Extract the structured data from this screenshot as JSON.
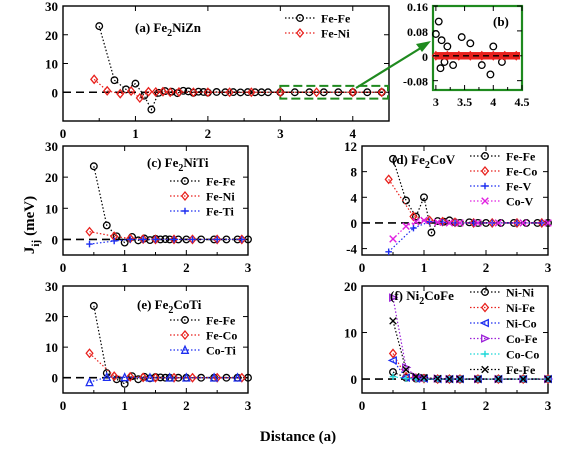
{
  "figure": {
    "ylabel_main": "J",
    "ylabel_sub": "ij",
    "ylabel_unit": "(meV)",
    "xlabel": "Distance (a)"
  },
  "colors": {
    "Fe-Fe": "#000000",
    "Fe-Ni": "#e8211d",
    "Fe-Co": "#e8211d",
    "Fe-Ti": "#1d2ef0",
    "Fe-V": "#1d2ef0",
    "Co-Ti": "#1d2ef0",
    "Co-V": "#e020e0",
    "Ni-Ni": "#000000",
    "Ni-Fe": "#e8211d",
    "Ni-Co": "#1d2ef0",
    "Co-Fe": "#9b1fd8",
    "Co-Co": "#1fd8d8",
    "inset_box": "#1f8a1f"
  },
  "chart_data": [
    {
      "id": "a",
      "type": "scatter",
      "label_prefix": "(a) Fe",
      "label_sub1": "2",
      "label_rest": "NiZn",
      "xlim": [
        0,
        4.5
      ],
      "ylim": [
        -10,
        30
      ],
      "xticks": [
        "0",
        "1",
        "2",
        "3",
        "4"
      ],
      "xtick_values": [
        0,
        1,
        2,
        3,
        4
      ],
      "yticks": [
        "0",
        "10",
        "20",
        "30"
      ],
      "ytick_values": [
        0,
        10,
        20,
        30
      ],
      "zoom_range": [
        3,
        4.5
      ],
      "series": [
        {
          "name": "Fe-Fe",
          "marker": "circle",
          "x": [
            0.5,
            0.71,
            0.87,
            1.0,
            1.12,
            1.22,
            1.32,
            1.41,
            1.5,
            1.58,
            1.66,
            1.73,
            1.8,
            1.87,
            1.94,
            2.0,
            2.12,
            2.24,
            2.35,
            2.45,
            2.55,
            2.65,
            2.74,
            2.83,
            3.0,
            3.2,
            3.4,
            3.6,
            3.8,
            4.0,
            4.2,
            4.4
          ],
          "y": [
            23,
            4.2,
            1.0,
            3.0,
            -1.2,
            -6.0,
            -0.2,
            0.4,
            0.2,
            -0.3,
            0.5,
            0.3,
            -0.2,
            0.2,
            0.1,
            -0.1,
            0.1,
            0,
            0.05,
            -0.05,
            0.05,
            0,
            0,
            0,
            0,
            0,
            0,
            0,
            0,
            0,
            0,
            0
          ]
        },
        {
          "name": "Fe-Ni",
          "marker": "diamond",
          "x": [
            0.43,
            0.61,
            0.79,
            0.94,
            1.06,
            1.18,
            1.28,
            1.38,
            1.48,
            1.6,
            1.8,
            2.0,
            2.3,
            2.6,
            3.0,
            3.5,
            4.0,
            4.4
          ],
          "y": [
            4.5,
            0.5,
            -0.5,
            0.4,
            -2.0,
            0.2,
            0.1,
            0.2,
            0,
            0.1,
            0,
            0,
            0,
            0,
            0,
            0,
            0,
            0
          ]
        }
      ]
    },
    {
      "id": "b",
      "type": "scatter",
      "label": "(b)",
      "xlim": [
        2.95,
        4.5
      ],
      "ylim": [
        -0.11,
        0.16
      ],
      "xticks": [
        "3",
        "3.5",
        "4",
        "4.5"
      ],
      "xtick_values": [
        3,
        3.5,
        4,
        4.5
      ],
      "yticks": [
        "-0.08",
        "0",
        "0.08",
        "0.16"
      ],
      "ytick_values": [
        -0.08,
        0,
        0.08,
        0.16
      ],
      "series": [
        {
          "name": "Fe-Fe",
          "marker": "circle",
          "x": [
            3.0,
            3.05,
            3.08,
            3.1,
            3.15,
            3.2,
            3.3,
            3.45,
            3.6,
            3.8,
            3.95,
            4.0,
            4.15
          ],
          "y": [
            0.07,
            0.11,
            -0.04,
            0.05,
            -0.02,
            0.03,
            -0.03,
            0.06,
            0.04,
            -0.03,
            -0.06,
            0.03,
            -0.02
          ]
        },
        {
          "name": "Fe-Ni",
          "marker": "diamond",
          "x": [
            3.0,
            3.2,
            3.4,
            3.6,
            3.8,
            4.0,
            4.2,
            4.4
          ],
          "y": [
            0,
            0,
            0,
            0,
            0,
            0,
            0,
            0
          ]
        }
      ]
    },
    {
      "id": "c",
      "type": "scatter",
      "label_prefix": "(c) Fe",
      "label_sub1": "2",
      "label_rest": "NiTi",
      "xlim": [
        0,
        3
      ],
      "ylim": [
        -5,
        30
      ],
      "xticks": [
        "0",
        "1",
        "2",
        "3"
      ],
      "xtick_values": [
        0,
        1,
        2,
        3
      ],
      "yticks": [
        "0",
        "10",
        "20",
        "30"
      ],
      "ytick_values": [
        0,
        10,
        20,
        30
      ],
      "series": [
        {
          "name": "Fe-Fe",
          "marker": "circle",
          "x": [
            0.5,
            0.71,
            0.87,
            1.0,
            1.12,
            1.22,
            1.32,
            1.41,
            1.5,
            1.58,
            1.66,
            1.73,
            1.87,
            2.0,
            2.24,
            2.45,
            2.65,
            2.83,
            3.0
          ],
          "y": [
            23.5,
            4.5,
            1.0,
            -1.0,
            0.8,
            -0.3,
            0.3,
            -0.2,
            0.2,
            0,
            0.1,
            0,
            0,
            0,
            0,
            0,
            0,
            0,
            0
          ]
        },
        {
          "name": "Fe-Ni",
          "marker": "diamond",
          "x": [
            0.43,
            0.83,
            1.09,
            1.3,
            1.5,
            1.8,
            2.1,
            2.5,
            2.9
          ],
          "y": [
            2.5,
            1.0,
            0.3,
            0.1,
            0,
            0,
            0,
            0,
            0
          ]
        },
        {
          "name": "Fe-Ti",
          "marker": "plus",
          "x": [
            0.43,
            0.83,
            1.09,
            1.3,
            1.5,
            1.8,
            2.1,
            2.5,
            2.9
          ],
          "y": [
            -1.5,
            -0.5,
            0,
            0,
            0,
            0,
            0,
            0,
            0
          ]
        }
      ]
    },
    {
      "id": "d",
      "type": "scatter",
      "label_prefix": "(d) Fe",
      "label_sub1": "2",
      "label_rest": "CoV",
      "xlim": [
        0,
        3
      ],
      "ylim": [
        -5,
        12
      ],
      "xticks": [
        "0",
        "1",
        "2",
        "3"
      ],
      "xtick_values": [
        0,
        1,
        2,
        3
      ],
      "yticks": [
        "-4",
        "0",
        "4",
        "8",
        "12"
      ],
      "ytick_values": [
        -4,
        0,
        4,
        8,
        12
      ],
      "series": [
        {
          "name": "Fe-Fe",
          "marker": "circle",
          "x": [
            0.5,
            0.71,
            0.87,
            1.0,
            1.12,
            1.22,
            1.32,
            1.41,
            1.5,
            1.58,
            1.73,
            1.87,
            2.0,
            2.24,
            2.45,
            2.65,
            2.83,
            3.0
          ],
          "y": [
            10,
            3.5,
            1.0,
            4.0,
            -1.5,
            0.3,
            0.2,
            0.4,
            0.1,
            0,
            0.1,
            0,
            0,
            0,
            0,
            0,
            0,
            0
          ]
        },
        {
          "name": "Fe-Co",
          "marker": "diamond",
          "x": [
            0.43,
            0.83,
            1.09,
            1.3,
            1.5,
            1.8,
            2.1,
            2.5,
            2.9
          ],
          "y": [
            6.8,
            1.0,
            0.4,
            0.2,
            0.1,
            0,
            0,
            0,
            0
          ]
        },
        {
          "name": "Fe-V",
          "marker": "plus",
          "x": [
            0.43,
            0.83,
            1.09,
            1.3,
            1.5,
            1.8,
            2.1,
            2.5,
            2.9
          ],
          "y": [
            -4.5,
            -0.8,
            0.2,
            0.1,
            0,
            0,
            0,
            0,
            0
          ]
        },
        {
          "name": "Co-V",
          "marker": "cross",
          "x": [
            0.5,
            0.71,
            0.87,
            1.0,
            1.22,
            1.41,
            1.58,
            1.87,
            2.2,
            2.6,
            3.0
          ],
          "y": [
            -2.5,
            -0.5,
            0.2,
            0.4,
            0.1,
            0,
            0,
            0,
            0,
            0,
            0
          ]
        }
      ]
    },
    {
      "id": "e",
      "type": "scatter",
      "label_prefix": "(e) Fe",
      "label_sub1": "2",
      "label_rest": "CoTi",
      "xlim": [
        0,
        3
      ],
      "ylim": [
        -5,
        30
      ],
      "xticks": [
        "0",
        "1",
        "2",
        "3"
      ],
      "xtick_values": [
        0,
        1,
        2,
        3
      ],
      "yticks": [
        "0",
        "10",
        "20",
        "30"
      ],
      "ytick_values": [
        0,
        10,
        20,
        30
      ],
      "series": [
        {
          "name": "Fe-Fe",
          "marker": "circle",
          "x": [
            0.5,
            0.71,
            0.87,
            1.0,
            1.12,
            1.22,
            1.32,
            1.41,
            1.5,
            1.58,
            1.66,
            1.73,
            1.87,
            2.0,
            2.24,
            2.45,
            2.65,
            2.83,
            3.0
          ],
          "y": [
            23.5,
            1.5,
            -0.5,
            -2.0,
            0.5,
            -0.5,
            0.3,
            -0.2,
            0.2,
            0.1,
            0,
            0,
            0,
            0,
            0,
            0,
            0,
            0,
            0
          ]
        },
        {
          "name": "Fe-Co",
          "marker": "diamond",
          "x": [
            0.43,
            0.83,
            1.09,
            1.3,
            1.5,
            1.8,
            2.1,
            2.5,
            2.9
          ],
          "y": [
            8.0,
            0.5,
            0.3,
            0.1,
            0,
            0,
            0,
            0,
            0
          ]
        },
        {
          "name": "Co-Ti",
          "marker": "triangle-up",
          "x": [
            0.43,
            0.71,
            1.0,
            1.41,
            1.73,
            2.0,
            2.45,
            2.83
          ],
          "y": [
            -1.5,
            0.2,
            0.1,
            0,
            0,
            0,
            0,
            0
          ]
        }
      ]
    },
    {
      "id": "f",
      "type": "scatter",
      "label_prefix": "(f) Ni",
      "label_sub1": "2",
      "label_rest": "CoFe",
      "xlim": [
        0,
        3
      ],
      "ylim": [
        -3,
        20
      ],
      "xticks": [
        "0",
        "1",
        "2",
        "3"
      ],
      "xtick_values": [
        0,
        1,
        2,
        3
      ],
      "yticks": [
        "0",
        "10",
        "20"
      ],
      "ytick_values": [
        0,
        10,
        20
      ],
      "series": [
        {
          "name": "Ni-Ni",
          "marker": "circle",
          "x": [
            0.5,
            0.71,
            0.87,
            1.0,
            1.22,
            1.41,
            1.58,
            1.87,
            2.2,
            2.6,
            3.0
          ],
          "y": [
            1.5,
            0.3,
            0.1,
            0.2,
            0,
            0,
            0,
            0,
            0,
            0,
            0
          ]
        },
        {
          "name": "Ni-Fe",
          "marker": "diamond",
          "x": [
            0.5,
            0.71,
            0.87,
            1.0,
            1.22,
            1.41,
            1.58,
            1.87,
            2.2,
            2.6,
            3.0
          ],
          "y": [
            5.5,
            0.5,
            0.2,
            0.1,
            0,
            0,
            0,
            0,
            0,
            0,
            0
          ]
        },
        {
          "name": "Ni-Co",
          "marker": "triangle-left",
          "x": [
            0.5,
            0.71,
            0.87,
            1.0,
            1.22,
            1.41,
            1.58,
            1.87,
            2.2,
            2.6,
            3.0
          ],
          "y": [
            4.0,
            0.3,
            0.1,
            0.1,
            0,
            0,
            0,
            0,
            0,
            0,
            0
          ]
        },
        {
          "name": "Co-Fe",
          "marker": "triangle-right",
          "x": [
            0.5,
            0.71,
            0.87,
            1.0,
            1.22,
            1.41,
            1.58,
            1.87,
            2.2,
            2.6,
            3.0
          ],
          "y": [
            17.5,
            2.5,
            0.5,
            0.2,
            0.1,
            0,
            0,
            0,
            0,
            0,
            0
          ]
        },
        {
          "name": "Co-Co",
          "marker": "plus",
          "x": [
            0.5,
            0.71,
            0.87,
            1.0,
            1.22,
            1.41,
            1.58,
            1.87,
            2.2,
            2.6,
            3.0
          ],
          "y": [
            0.5,
            0.1,
            0,
            0,
            0,
            0,
            0,
            0,
            0,
            0,
            0
          ]
        },
        {
          "name": "Fe-Fe",
          "marker": "cross",
          "x": [
            0.5,
            0.71,
            0.87,
            1.0,
            1.22,
            1.41,
            1.58,
            1.87,
            2.2,
            2.6,
            3.0
          ],
          "y": [
            12.5,
            2.0,
            0.5,
            0.3,
            0.1,
            0,
            0,
            0,
            0,
            0,
            0
          ]
        }
      ]
    }
  ]
}
